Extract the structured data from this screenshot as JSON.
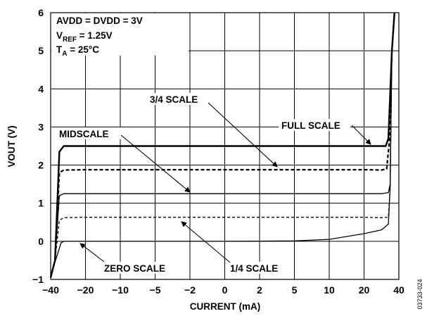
{
  "chart_data": {
    "type": "line",
    "title": "",
    "xlabel": "CURRENT (mA)",
    "ylabel": "VOUT (V)",
    "x_tick_labels": [
      "−40",
      "−20",
      "−10",
      "−5",
      "−2",
      "0",
      "2",
      "5",
      "10",
      "20",
      "40"
    ],
    "y_tick_labels": [
      "−1",
      "0",
      "1",
      "2",
      "3",
      "4",
      "5",
      "6"
    ],
    "ylim": [
      -1,
      6
    ],
    "grid": true,
    "conditions": {
      "line1": "AVDD = DVDD = 3V",
      "line2_main": "V",
      "line2_sub": "REF",
      "line2_rest": " = 1.25V",
      "line3_main": "T",
      "line3_sub": "A",
      "line3_rest": " = 25°C"
    },
    "figure_id": "03733-024",
    "series": [
      {
        "name": "FULL SCALE",
        "style": "solid-thick",
        "points": [
          [
            -40,
            -0.95
          ],
          [
            -37.5,
            -0.5
          ],
          [
            -35,
            2.35
          ],
          [
            -32.5,
            2.5
          ],
          [
            -20,
            2.5
          ],
          [
            20,
            2.5
          ],
          [
            25,
            2.5
          ],
          [
            32.5,
            2.5
          ],
          [
            34,
            2.7
          ],
          [
            36,
            5.0
          ],
          [
            37.5,
            6.0
          ]
        ]
      },
      {
        "name": "3/4 SCALE",
        "style": "dashed-thick",
        "points": [
          [
            -40,
            -0.95
          ],
          [
            -37.5,
            -0.5
          ],
          [
            -35,
            1.8
          ],
          [
            -32.5,
            1.87
          ],
          [
            -20,
            1.88
          ],
          [
            20,
            1.88
          ],
          [
            30,
            1.87
          ],
          [
            33,
            1.9
          ],
          [
            34.5,
            2.6
          ],
          [
            36,
            5.0
          ],
          [
            37.5,
            6.0
          ]
        ]
      },
      {
        "name": "MIDSCALE",
        "style": "solid-thin",
        "points": [
          [
            -40,
            -0.95
          ],
          [
            -37.5,
            -0.5
          ],
          [
            -35,
            1.2
          ],
          [
            -32.5,
            1.25
          ],
          [
            -20,
            1.25
          ],
          [
            20,
            1.25
          ],
          [
            30,
            1.25
          ],
          [
            34,
            1.28
          ],
          [
            35,
            1.5
          ],
          [
            36,
            5.0
          ],
          [
            37.5,
            6.0
          ]
        ]
      },
      {
        "name": "1/4 SCALE",
        "style": "dashed-thin",
        "points": [
          [
            -40,
            -0.95
          ],
          [
            -37.5,
            -0.5
          ],
          [
            -35,
            0.55
          ],
          [
            -32.5,
            0.62
          ],
          [
            -20,
            0.63
          ],
          [
            20,
            0.63
          ],
          [
            30,
            0.62
          ],
          [
            34,
            0.63
          ],
          [
            35,
            1.4
          ],
          [
            36,
            5.0
          ],
          [
            37.5,
            6.0
          ]
        ]
      },
      {
        "name": "ZERO SCALE",
        "style": "solid-thin",
        "points": [
          [
            -40,
            -0.95
          ],
          [
            -37.5,
            -0.55
          ],
          [
            -34,
            -0.04
          ],
          [
            -32.5,
            0.0
          ],
          [
            -20,
            0.0
          ],
          [
            0,
            0.0
          ],
          [
            5,
            0.01
          ],
          [
            10,
            0.05
          ],
          [
            20,
            0.2
          ],
          [
            30,
            0.3
          ],
          [
            34,
            0.45
          ],
          [
            35,
            1.4
          ],
          [
            36,
            5.0
          ],
          [
            37.5,
            6.0
          ]
        ]
      }
    ],
    "annotations": [
      {
        "text": "3/4 SCALE",
        "series": "3/4 SCALE"
      },
      {
        "text": "MIDSCALE",
        "series": "MIDSCALE"
      },
      {
        "text": "FULL SCALE",
        "series": "FULL SCALE"
      },
      {
        "text": "ZERO SCALE",
        "series": "ZERO SCALE"
      },
      {
        "text": "1/4 SCALE",
        "series": "1/4 SCALE"
      }
    ]
  }
}
